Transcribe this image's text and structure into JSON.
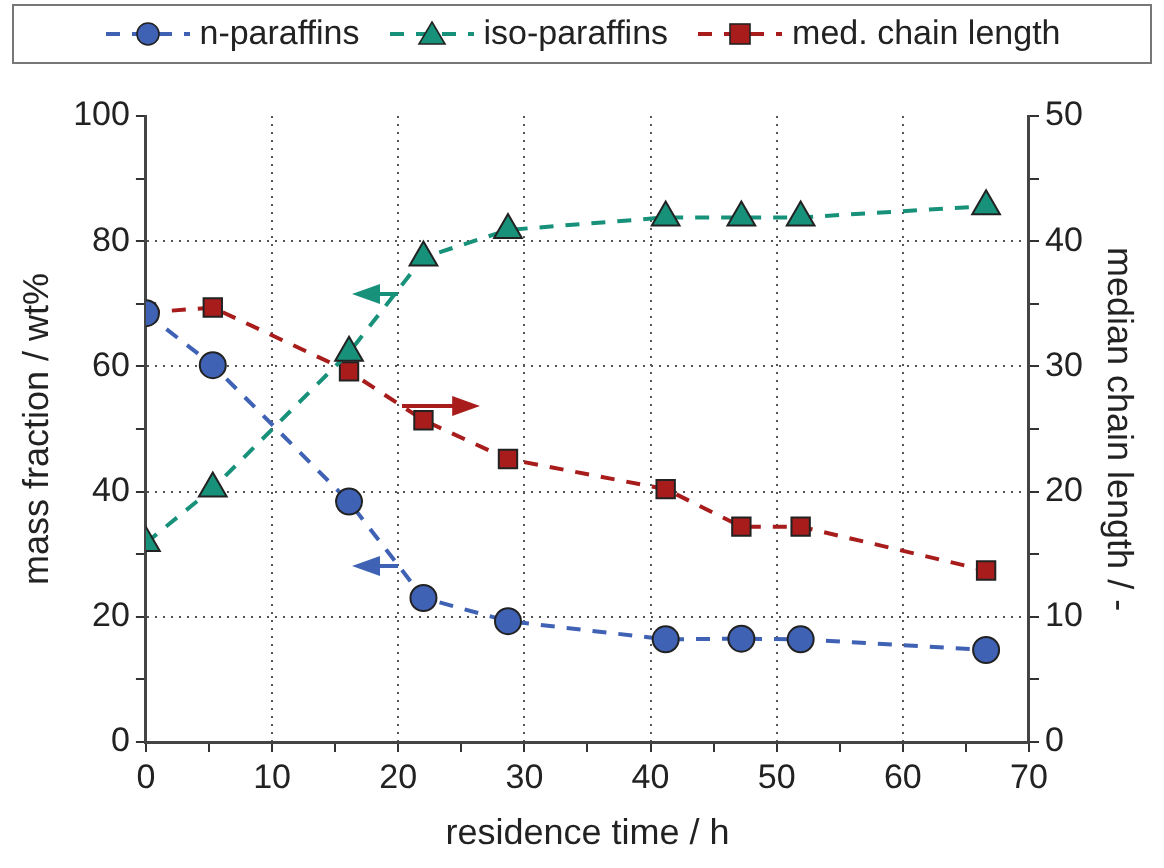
{
  "chart_data": {
    "type": "line",
    "xlabel": "residence time / h",
    "ylabel": "mass fraction / wt%",
    "y2label": "median chain length / -",
    "xlim": [
      0,
      70
    ],
    "xticks": [
      0,
      {
        "value": 5,
        "label": null
      },
      10,
      {
        "value": 15,
        "label": null
      },
      20,
      {
        "value": 25,
        "label": null
      },
      30,
      {
        "value": 35,
        "label": null
      },
      40,
      {
        "value": 45,
        "label": null
      },
      50,
      {
        "value": 55,
        "label": null
      },
      60,
      {
        "value": 65,
        "label": null
      },
      70
    ],
    "ylim": [
      0,
      100
    ],
    "yticks": [
      0,
      {
        "value": 10,
        "label": null
      },
      20,
      {
        "value": 30,
        "label": null
      },
      40,
      {
        "value": 50,
        "label": null
      },
      60,
      {
        "value": 70,
        "label": null
      },
      80,
      {
        "value": 90,
        "label": null
      },
      100
    ],
    "y2lim": [
      0,
      50
    ],
    "y2ticks": [
      0,
      {
        "value": 5,
        "label": null
      },
      10,
      {
        "value": 15,
        "label": null
      },
      20,
      {
        "value": 25,
        "label": null
      },
      30,
      {
        "value": 35,
        "label": null
      },
      40,
      {
        "value": 45,
        "label": null
      },
      50
    ],
    "grid": true,
    "legend": "top",
    "line_style": "dashed",
    "x": [
      0,
      5.3,
      16.1,
      22,
      28.7,
      41.2,
      47.2,
      51.9,
      66.6
    ],
    "series": [
      {
        "name": "n-paraffins",
        "color": "#3f62b5",
        "marker": "circle",
        "values": [
          68.5,
          60.2,
          38.4,
          23,
          19.3,
          16.4,
          16.5,
          16.4,
          14.7
        ]
      },
      {
        "name": "iso-paraffins",
        "color": "#17917a",
        "marker": "triangle",
        "values": [
          31.8,
          40.5,
          62.2,
          77.4,
          81.8,
          83.8,
          83.8,
          83.8,
          85.6
        ]
      },
      {
        "name": "med. chain length",
        "color": "#a81c1c",
        "marker": "square",
        "axis": "y2",
        "values": [
          34.3,
          34.7,
          29.6,
          25.7,
          22.6,
          20.2,
          17.2,
          17.2,
          13.7
        ]
      }
    ]
  }
}
